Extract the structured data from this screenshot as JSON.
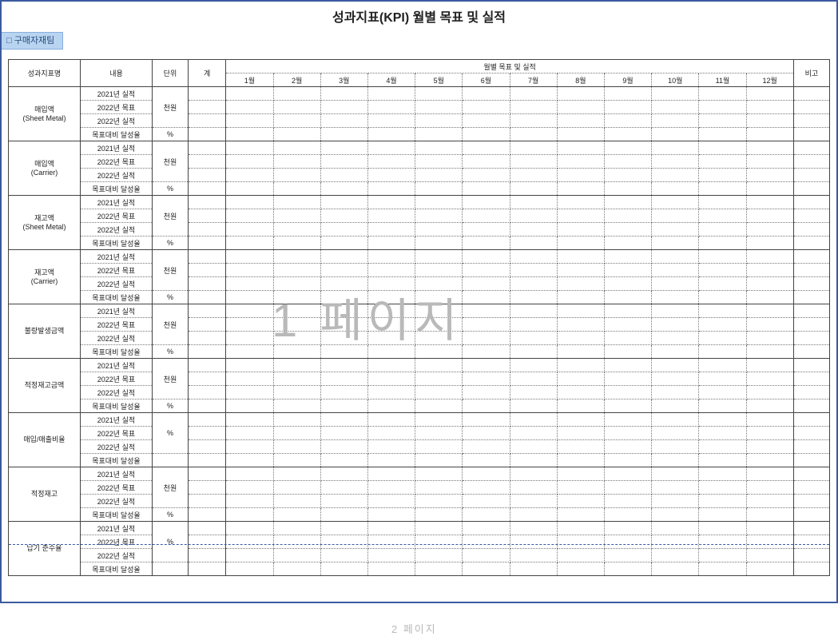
{
  "title": "성과지표(KPI) 월별 목표 및 실적",
  "ribbon_tab": "□ 구매자재팀",
  "watermark1": "1 페이지",
  "watermark2": "2 페이지",
  "header": {
    "kpi_name": "성과지표명",
    "content": "내용",
    "unit": "단위",
    "total": "계",
    "monthly_group": "월별 목표 및 실적",
    "note": "비고",
    "months": [
      "1월",
      "2월",
      "3월",
      "4월",
      "5월",
      "6월",
      "7월",
      "8월",
      "9월",
      "10월",
      "11월",
      "12월"
    ]
  },
  "content_rows": {
    "y2021_actual": "2021년 실적",
    "y2022_target": "2022년 목표",
    "y2022_actual": "2022년 실적",
    "achieve_rate": "목표대비 달성율"
  },
  "groups": [
    {
      "name_line1": "매입액",
      "name_line2": "(Sheet Metal)",
      "unit_main": "천원",
      "unit_rate": "%"
    },
    {
      "name_line1": "매입액",
      "name_line2": "(Carrier)",
      "unit_main": "천원",
      "unit_rate": "%"
    },
    {
      "name_line1": "재고액",
      "name_line2": "(Sheet Metal)",
      "unit_main": "천원",
      "unit_rate": "%"
    },
    {
      "name_line1": "재고액",
      "name_line2": "(Carrier)",
      "unit_main": "천원",
      "unit_rate": "%"
    },
    {
      "name_line1": "불량발생금액",
      "name_line2": "",
      "unit_main": "천원",
      "unit_rate": "%"
    },
    {
      "name_line1": "적정재고금액",
      "name_line2": "",
      "unit_main": "천원",
      "unit_rate": "%"
    },
    {
      "name_line1": "매입/매출비율",
      "name_line2": "",
      "unit_main": "%",
      "unit_rate": ""
    },
    {
      "name_line1": "적정재고",
      "name_line2": "",
      "unit_main": "천원",
      "unit_rate": "%"
    },
    {
      "name_line1": "납기 준수율",
      "name_line2": "",
      "unit_main": "%",
      "unit_rate": ""
    }
  ]
}
